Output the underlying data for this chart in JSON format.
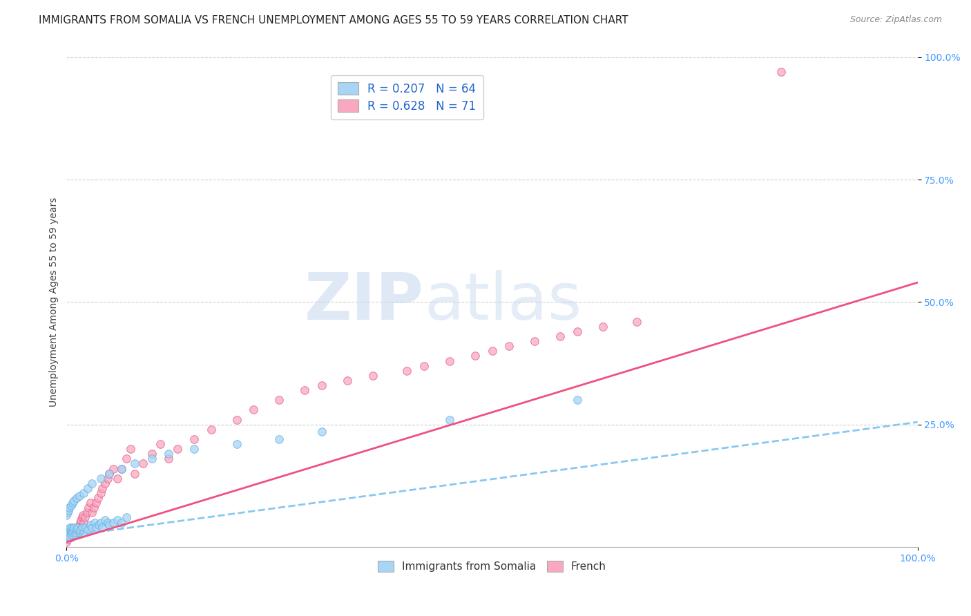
{
  "title": "IMMIGRANTS FROM SOMALIA VS FRENCH UNEMPLOYMENT AMONG AGES 55 TO 59 YEARS CORRELATION CHART",
  "source": "Source: ZipAtlas.com",
  "ylabel": "Unemployment Among Ages 55 to 59 years",
  "xlim": [
    0.0,
    1.0
  ],
  "ylim": [
    0.0,
    1.0
  ],
  "legend_r1": "R = 0.207",
  "legend_n1": "N = 64",
  "legend_r2": "R = 0.628",
  "legend_n2": "N = 71",
  "color_blue": "#a8d4f5",
  "color_pink": "#f9a8c0",
  "color_blue_edge": "#5baee0",
  "color_pink_edge": "#e05585",
  "line_blue": "#88c8f0",
  "line_pink": "#f05080",
  "watermark_zip": "ZIP",
  "watermark_atlas": "atlas",
  "background_color": "#ffffff",
  "grid_color": "#d0d0d0",
  "tick_color": "#4499ff",
  "title_color": "#222222",
  "ylabel_color": "#444444",
  "source_color": "#888888",
  "blue_x": [
    0.0,
    0.001,
    0.001,
    0.002,
    0.002,
    0.003,
    0.003,
    0.004,
    0.004,
    0.005,
    0.005,
    0.006,
    0.006,
    0.007,
    0.008,
    0.009,
    0.01,
    0.011,
    0.012,
    0.013,
    0.015,
    0.016,
    0.018,
    0.02,
    0.022,
    0.025,
    0.028,
    0.03,
    0.033,
    0.035,
    0.038,
    0.04,
    0.042,
    0.045,
    0.048,
    0.05,
    0.055,
    0.06,
    0.065,
    0.07,
    0.0,
    0.001,
    0.002,
    0.003,
    0.005,
    0.007,
    0.009,
    0.012,
    0.015,
    0.02,
    0.025,
    0.03,
    0.04,
    0.05,
    0.065,
    0.08,
    0.1,
    0.12,
    0.15,
    0.2,
    0.25,
    0.3,
    0.45,
    0.6
  ],
  "blue_y": [
    0.02,
    0.025,
    0.03,
    0.02,
    0.035,
    0.025,
    0.03,
    0.02,
    0.04,
    0.03,
    0.035,
    0.025,
    0.04,
    0.03,
    0.035,
    0.04,
    0.025,
    0.03,
    0.035,
    0.04,
    0.03,
    0.035,
    0.04,
    0.03,
    0.04,
    0.035,
    0.045,
    0.04,
    0.05,
    0.04,
    0.045,
    0.05,
    0.04,
    0.055,
    0.05,
    0.045,
    0.05,
    0.055,
    0.05,
    0.06,
    0.065,
    0.07,
    0.075,
    0.08,
    0.085,
    0.09,
    0.095,
    0.1,
    0.105,
    0.11,
    0.12,
    0.13,
    0.14,
    0.15,
    0.16,
    0.17,
    0.18,
    0.19,
    0.2,
    0.21,
    0.22,
    0.235,
    0.26,
    0.3
  ],
  "pink_x": [
    0.0,
    0.001,
    0.002,
    0.002,
    0.003,
    0.003,
    0.004,
    0.005,
    0.005,
    0.006,
    0.006,
    0.007,
    0.008,
    0.008,
    0.009,
    0.01,
    0.011,
    0.012,
    0.013,
    0.014,
    0.015,
    0.016,
    0.017,
    0.018,
    0.019,
    0.02,
    0.022,
    0.024,
    0.026,
    0.028,
    0.03,
    0.032,
    0.035,
    0.037,
    0.04,
    0.042,
    0.045,
    0.048,
    0.05,
    0.055,
    0.06,
    0.065,
    0.07,
    0.075,
    0.08,
    0.09,
    0.1,
    0.11,
    0.12,
    0.13,
    0.15,
    0.17,
    0.2,
    0.22,
    0.25,
    0.28,
    0.3,
    0.33,
    0.36,
    0.4,
    0.42,
    0.45,
    0.48,
    0.5,
    0.52,
    0.55,
    0.58,
    0.6,
    0.63,
    0.67,
    0.84
  ],
  "pink_y": [
    0.01,
    0.015,
    0.02,
    0.025,
    0.02,
    0.03,
    0.025,
    0.02,
    0.03,
    0.025,
    0.035,
    0.03,
    0.025,
    0.035,
    0.03,
    0.025,
    0.03,
    0.035,
    0.04,
    0.03,
    0.04,
    0.05,
    0.055,
    0.06,
    0.065,
    0.05,
    0.06,
    0.07,
    0.08,
    0.09,
    0.07,
    0.08,
    0.09,
    0.1,
    0.11,
    0.12,
    0.13,
    0.14,
    0.15,
    0.16,
    0.14,
    0.16,
    0.18,
    0.2,
    0.15,
    0.17,
    0.19,
    0.21,
    0.18,
    0.2,
    0.22,
    0.24,
    0.26,
    0.28,
    0.3,
    0.32,
    0.33,
    0.34,
    0.35,
    0.36,
    0.37,
    0.38,
    0.39,
    0.4,
    0.41,
    0.42,
    0.43,
    0.44,
    0.45,
    0.46,
    0.97
  ],
  "blue_line_x0": 0.0,
  "blue_line_x1": 1.0,
  "blue_line_y0": 0.022,
  "blue_line_y1": 0.255,
  "pink_line_x0": 0.0,
  "pink_line_x1": 1.0,
  "pink_line_y0": 0.01,
  "pink_line_y1": 0.54,
  "title_fontsize": 11,
  "source_fontsize": 9,
  "tick_fontsize": 10,
  "ylabel_fontsize": 10
}
